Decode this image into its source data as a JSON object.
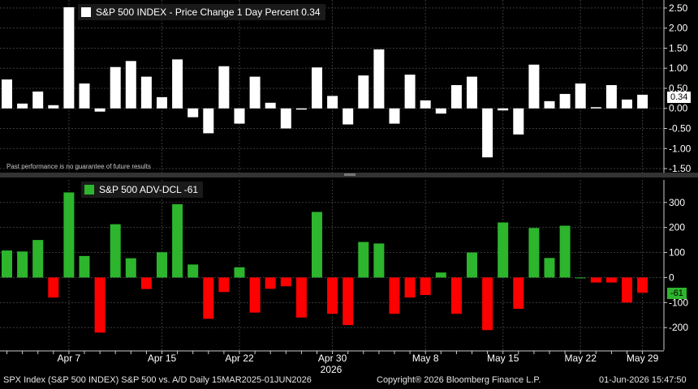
{
  "chart_data": [
    {
      "type": "bar",
      "legend": "S&P 500 INDEX - Price Change 1 Day Percent 0.34",
      "color": "#ffffff",
      "last_value_label": "0.34",
      "ylim": [
        -1.6,
        2.7
      ],
      "y_ticks": [
        "2.50",
        "2.00",
        "1.50",
        "1.00",
        "0.50",
        "0.00",
        "-0.50",
        "-1.00",
        "-1.50"
      ],
      "y_tick_values": [
        2.5,
        2.0,
        1.5,
        1.0,
        0.5,
        0.0,
        -0.5,
        -1.0,
        -1.5
      ],
      "values": [
        0.72,
        0.12,
        0.42,
        0.08,
        2.52,
        0.62,
        -0.08,
        1.03,
        1.18,
        0.79,
        0.28,
        1.22,
        -0.22,
        -0.62,
        1.05,
        -0.38,
        0.79,
        0.14,
        -0.5,
        -0.03,
        1.02,
        0.31,
        -0.4,
        0.82,
        1.47,
        -0.38,
        0.84,
        0.2,
        -0.13,
        0.58,
        0.79,
        -1.22,
        -0.05,
        -0.65,
        1.09,
        0.18,
        0.36,
        0.62,
        0.03,
        0.58,
        0.22,
        0.34
      ],
      "annotation": "Past performance is no guarantee of future results"
    },
    {
      "type": "bar",
      "legend": "S&P 500 ADV-DCL -61",
      "positive_color": "#2db52d",
      "negative_color": "#ff0000",
      "last_value_label": "-61",
      "ylim": [
        -290,
        390
      ],
      "y_ticks": [
        "300",
        "200",
        "100",
        "0",
        "-100",
        "-200"
      ],
      "y_tick_values": [
        300,
        200,
        100,
        0,
        -100,
        -200
      ],
      "values": [
        108,
        104,
        150,
        -80,
        340,
        86,
        -220,
        213,
        77,
        -46,
        101,
        293,
        52,
        -165,
        -58,
        41,
        -140,
        -45,
        -35,
        -160,
        262,
        -145,
        -190,
        142,
        136,
        -145,
        -80,
        -70,
        20,
        -145,
        100,
        -210,
        220,
        -125,
        198,
        78,
        207,
        0,
        -20,
        -20,
        -100,
        -61
      ]
    }
  ],
  "x_axis": {
    "tick_labels": [
      "Apr 7",
      "Apr 15",
      "Apr 22",
      "Apr 30",
      "May 8",
      "May 15",
      "May 22",
      "May 29"
    ],
    "tick_index": [
      4,
      10,
      15,
      21,
      27,
      32,
      37,
      41
    ],
    "year_label": "2026"
  },
  "footer": {
    "left": "SPX Index (S&P 500 INDEX) S&P 500 vs. A/D Daily 15MAR2025-01JUN2026",
    "center": "Copyright® 2026 Bloomberg Finance L.P.",
    "right": "01-Jun-2026 15:47:50"
  }
}
